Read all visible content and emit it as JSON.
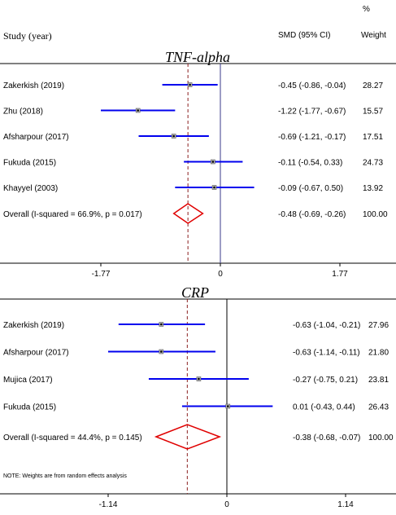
{
  "header": {
    "study_label": "Study (year)",
    "smd_label": "SMD (95% CI)",
    "pct_label": "%",
    "weight_label": "Weight"
  },
  "note": "NOTE: Weights are from random effects analysis",
  "chart_data": [
    {
      "type": "forest",
      "title": "TNF-alpha",
      "xlim": [
        -1.77,
        1.77
      ],
      "xticks": [
        "-1.77",
        "0",
        "1.77"
      ],
      "overall_line": -0.48,
      "studies": [
        {
          "label": "Zakerkish (2019)",
          "est": -0.45,
          "lo": -0.86,
          "hi": -0.04,
          "ci_text": "-0.45 (-0.86, -0.04)",
          "weight": "28.27"
        },
        {
          "label": "Zhu  (2018)",
          "est": -1.22,
          "lo": -1.77,
          "hi": -0.67,
          "ci_text": "-1.22 (-1.77, -0.67)",
          "weight": "15.57"
        },
        {
          "label": "Afsharpour (2017)",
          "est": -0.69,
          "lo": -1.21,
          "hi": -0.17,
          "ci_text": "-0.69 (-1.21, -0.17)",
          "weight": "17.51"
        },
        {
          "label": "Fukuda (2015)",
          "est": -0.11,
          "lo": -0.54,
          "hi": 0.33,
          "ci_text": "-0.11 (-0.54, 0.33)",
          "weight": "24.73"
        },
        {
          "label": "Khayyel (2003)",
          "est": -0.09,
          "lo": -0.67,
          "hi": 0.5,
          "ci_text": "-0.09 (-0.67, 0.50)",
          "weight": "13.92"
        }
      ],
      "overall": {
        "label": "Overall  (I-squared = 66.9%, p = 0.017)",
        "est": -0.48,
        "lo": -0.69,
        "hi": -0.26,
        "ci_text": "-0.48 (-0.69, -0.26)",
        "weight": "100.00"
      }
    },
    {
      "type": "forest",
      "title": "CRP",
      "xlim": [
        -1.14,
        1.14
      ],
      "xticks": [
        "-1.14",
        "0",
        "1.14"
      ],
      "overall_line": -0.38,
      "studies": [
        {
          "label": "Zakerkish (2019)",
          "est": -0.63,
          "lo": -1.04,
          "hi": -0.21,
          "ci_text": "-0.63 (-1.04, -0.21)",
          "weight": "27.96"
        },
        {
          "label": "Afsharpour (2017)",
          "est": -0.63,
          "lo": -1.14,
          "hi": -0.11,
          "ci_text": "-0.63 (-1.14, -0.11)",
          "weight": "21.80"
        },
        {
          "label": "Mujica (2017)",
          "est": -0.27,
          "lo": -0.75,
          "hi": 0.21,
          "ci_text": "-0.27 (-0.75, 0.21)",
          "weight": "23.81"
        },
        {
          "label": "Fukuda (2015)",
          "est": 0.01,
          "lo": -0.43,
          "hi": 0.44,
          "ci_text": "0.01 (-0.43, 0.44)",
          "weight": "26.43"
        }
      ],
      "overall": {
        "label": "Overall  (I-squared = 44.4%, p = 0.145)",
        "est": -0.38,
        "lo": -0.68,
        "hi": -0.07,
        "ci_text": "-0.38 (-0.68, -0.07)",
        "weight": "100.00"
      }
    }
  ]
}
